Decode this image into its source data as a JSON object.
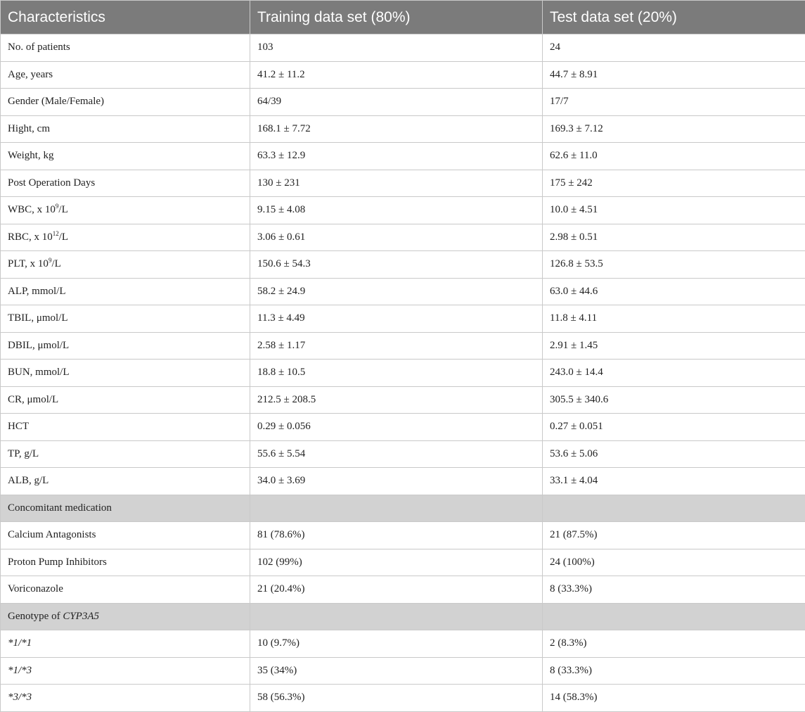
{
  "table": {
    "headers": [
      "Characteristics",
      "Training data set (80%)",
      "Test data set (20%)"
    ],
    "rows": [
      {
        "label": "No. of patients",
        "train": "103",
        "test": "24"
      },
      {
        "label": "Age, years",
        "train": "41.2 ± 11.2",
        "test": "44.7 ± 8.91"
      },
      {
        "label": "Gender (Male/Female)",
        "train": "64/39",
        "test": "17/7"
      },
      {
        "label": "Hight, cm",
        "train": "168.1 ± 7.72",
        "test": "169.3 ± 7.12"
      },
      {
        "label": "Weight, kg",
        "train": "63.3 ± 12.9",
        "test": "62.6 ± 11.0"
      },
      {
        "label": "Post Operation Days",
        "train": "130 ± 231",
        "test": "175 ± 242"
      },
      {
        "label_prefix": "WBC, x 10",
        "label_sup": "9",
        "label_suffix": "/L",
        "train": "9.15 ± 4.08",
        "test": "10.0 ± 4.51"
      },
      {
        "label_prefix": "RBC, x 10",
        "label_sup": "12",
        "label_suffix": "/L",
        "train": "3.06 ± 0.61",
        "test": "2.98 ± 0.51"
      },
      {
        "label_prefix": "PLT, x 10",
        "label_sup": "9",
        "label_suffix": "/L",
        "train": "150.6 ± 54.3",
        "test": "126.8 ± 53.5"
      },
      {
        "label": "ALP, mmol/L",
        "train": "58.2 ± 24.9",
        "test": "63.0 ± 44.6"
      },
      {
        "label": "TBIL, μmol/L",
        "train": "11.3 ± 4.49",
        "test": "11.8 ± 4.11"
      },
      {
        "label": "DBIL, μmol/L",
        "train": "2.58 ± 1.17",
        "test": "2.91 ± 1.45"
      },
      {
        "label": "BUN, mmol/L",
        "train": "18.8 ± 10.5",
        "test": "243.0 ± 14.4"
      },
      {
        "label": "CR, μmol/L",
        "train": "212.5 ± 208.5",
        "test": "305.5 ± 340.6"
      },
      {
        "label": "HCT",
        "train": "0.29 ± 0.056",
        "test": "0.27 ± 0.051"
      },
      {
        "label": "TP, g/L",
        "train": "55.6 ± 5.54",
        "test": "53.6 ± 5.06"
      },
      {
        "label": "ALB, g/L",
        "train": "34.0 ± 3.69",
        "test": "33.1 ± 4.04"
      }
    ],
    "section_medication": "Concomitant medication",
    "medication_rows": [
      {
        "label": "Calcium Antagonists",
        "train": "81 (78.6%)",
        "test": "21 (87.5%)"
      },
      {
        "label": "Proton Pump Inhibitors",
        "train": "102 (99%)",
        "test": "24 (100%)"
      },
      {
        "label": "Voriconazole",
        "train": "21 (20.4%)",
        "test": "8 (33.3%)"
      }
    ],
    "section_genotype_prefix": "Genotype of ",
    "section_genotype_gene": "CYP3A5",
    "genotype_rows": [
      {
        "label": "*1/*1",
        "train": "10 (9.7%)",
        "test": "2 (8.3%)"
      },
      {
        "label": "*1/*3",
        "train": "35 (34%)",
        "test": "8 (33.3%)"
      },
      {
        "label": "*3/*3",
        "train": "58 (56.3%)",
        "test": "14 (58.3%)"
      }
    ]
  }
}
